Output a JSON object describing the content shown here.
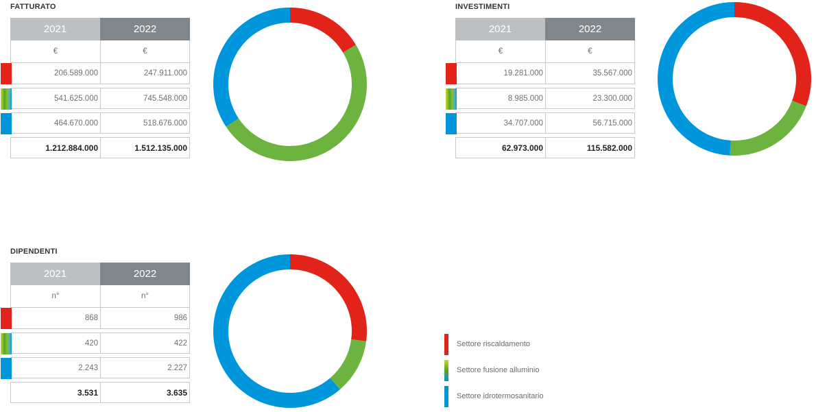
{
  "colors": {
    "riscaldamento": "#e2231a",
    "fusione": "#6cb33f",
    "idrotermosanitario": "#0096dc",
    "header_2021": "#bdc0c3",
    "header_2022": "#7f878d"
  },
  "legend": [
    {
      "label": "Settore riscaldamento",
      "color": "#e2231a"
    },
    {
      "label": "Settore fusione alluminio",
      "color": "#6cb33f"
    },
    {
      "label": "Settore idrotermosanitario",
      "color": "#0096dc"
    }
  ],
  "panels": {
    "fatturato": {
      "title": "FATTURATO",
      "year1": "2021",
      "year2": "2022",
      "unit1": "€",
      "unit2": "€",
      "rows": [
        {
          "v2021": "206.589.000",
          "v2022": "247.911.000"
        },
        {
          "v2021": "541.625.000",
          "v2022": "745.548.000"
        },
        {
          "v2021": "464.670.000",
          "v2022": "518.676.000"
        }
      ],
      "total": {
        "v2021": "1.212.884.000",
        "v2022": "1.512.135.000"
      }
    },
    "investimenti": {
      "title": "INVESTIMENTI",
      "year1": "2021",
      "year2": "2022",
      "unit1": "€",
      "unit2": "€",
      "rows": [
        {
          "v2021": "19.281.000",
          "v2022": "35.567.000"
        },
        {
          "v2021": "8.985.000",
          "v2022": "23.300.000"
        },
        {
          "v2021": "34.707.000",
          "v2022": "56.715.000"
        }
      ],
      "total": {
        "v2021": "62.973.000",
        "v2022": "115.582.000"
      }
    },
    "dipendenti": {
      "title": "DIPENDENTI",
      "year1": "2021",
      "year2": "2022",
      "unit1": "n°",
      "unit2": "n°",
      "rows": [
        {
          "v2021": "868",
          "v2022": "986"
        },
        {
          "v2021": "420",
          "v2022": "422"
        },
        {
          "v2021": "2.243",
          "v2022": "2.227"
        }
      ],
      "total": {
        "v2021": "3.531",
        "v2022": "3.635"
      }
    }
  },
  "chart_data": [
    {
      "type": "pie",
      "id": "fatturato",
      "categories": [
        "Settore riscaldamento",
        "Settore fusione alluminio",
        "Settore idrotermosanitario"
      ],
      "values": [
        247911000,
        745548000,
        518676000
      ]
    },
    {
      "type": "pie",
      "id": "investimenti",
      "categories": [
        "Settore riscaldamento",
        "Settore fusione alluminio",
        "Settore idrotermosanitario"
      ],
      "values": [
        35567000,
        23300000,
        56715000
      ]
    },
    {
      "type": "pie",
      "id": "dipendenti",
      "categories": [
        "Settore riscaldamento",
        "Settore fusione alluminio",
        "Settore idrotermosanitario"
      ],
      "values": [
        986,
        422,
        2227
      ]
    }
  ]
}
